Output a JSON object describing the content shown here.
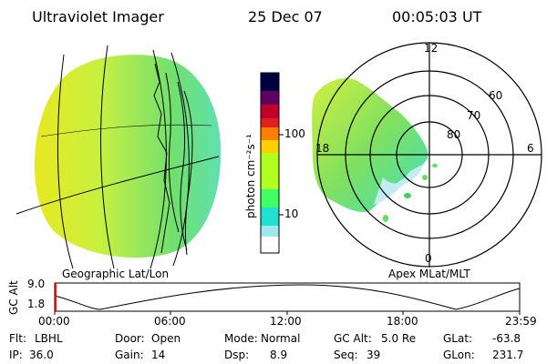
{
  "header": {
    "instrument": "Ultraviolet Imager",
    "date": "25 Dec 07",
    "time": "00:05:03 UT"
  },
  "left_panel": {
    "label": "Geographic Lat/Lon"
  },
  "right_panel": {
    "label": "Apex MLat/MLT",
    "mlt_labels": [
      "12",
      "18",
      "6",
      "0"
    ],
    "mlat_labels": [
      "60",
      "70",
      "80"
    ]
  },
  "colorbar": {
    "unit_label": "photon cm⁻²s⁻¹",
    "ticks": [
      "100",
      "10"
    ],
    "scale": "log",
    "colors": [
      "#000040",
      "#600060",
      "#a0003a",
      "#e02020",
      "#ff7000",
      "#ffd000",
      "#b0ff20",
      "#40ff60",
      "#20e0d0",
      "#a0e8f0",
      "#ffffff"
    ]
  },
  "altitude_plot": {
    "ylabel": "GC Alt",
    "yticks": [
      "9.0",
      "1.8"
    ],
    "xticks": [
      "00:00",
      "06:00",
      "12:00",
      "18:00",
      "23:59"
    ],
    "current_time_color": "#ff0000"
  },
  "status": {
    "row1": [
      {
        "label": "Flt:",
        "value": "LBHL"
      },
      {
        "label": "Door:",
        "value": "Open"
      },
      {
        "label": "Mode:",
        "value": "Normal"
      },
      {
        "label": "GC Alt:",
        "value": "5.0 Re"
      },
      {
        "label": "GLat:",
        "value": "-63.8"
      }
    ],
    "row2": [
      {
        "label": "IP:",
        "value": "36.0"
      },
      {
        "label": "Gain:",
        "value": "14"
      },
      {
        "label": "Dsp:",
        "value": "8.9"
      },
      {
        "label": "Seq:",
        "value": "39"
      },
      {
        "label": "GLon:",
        "value": "231.7"
      }
    ]
  }
}
